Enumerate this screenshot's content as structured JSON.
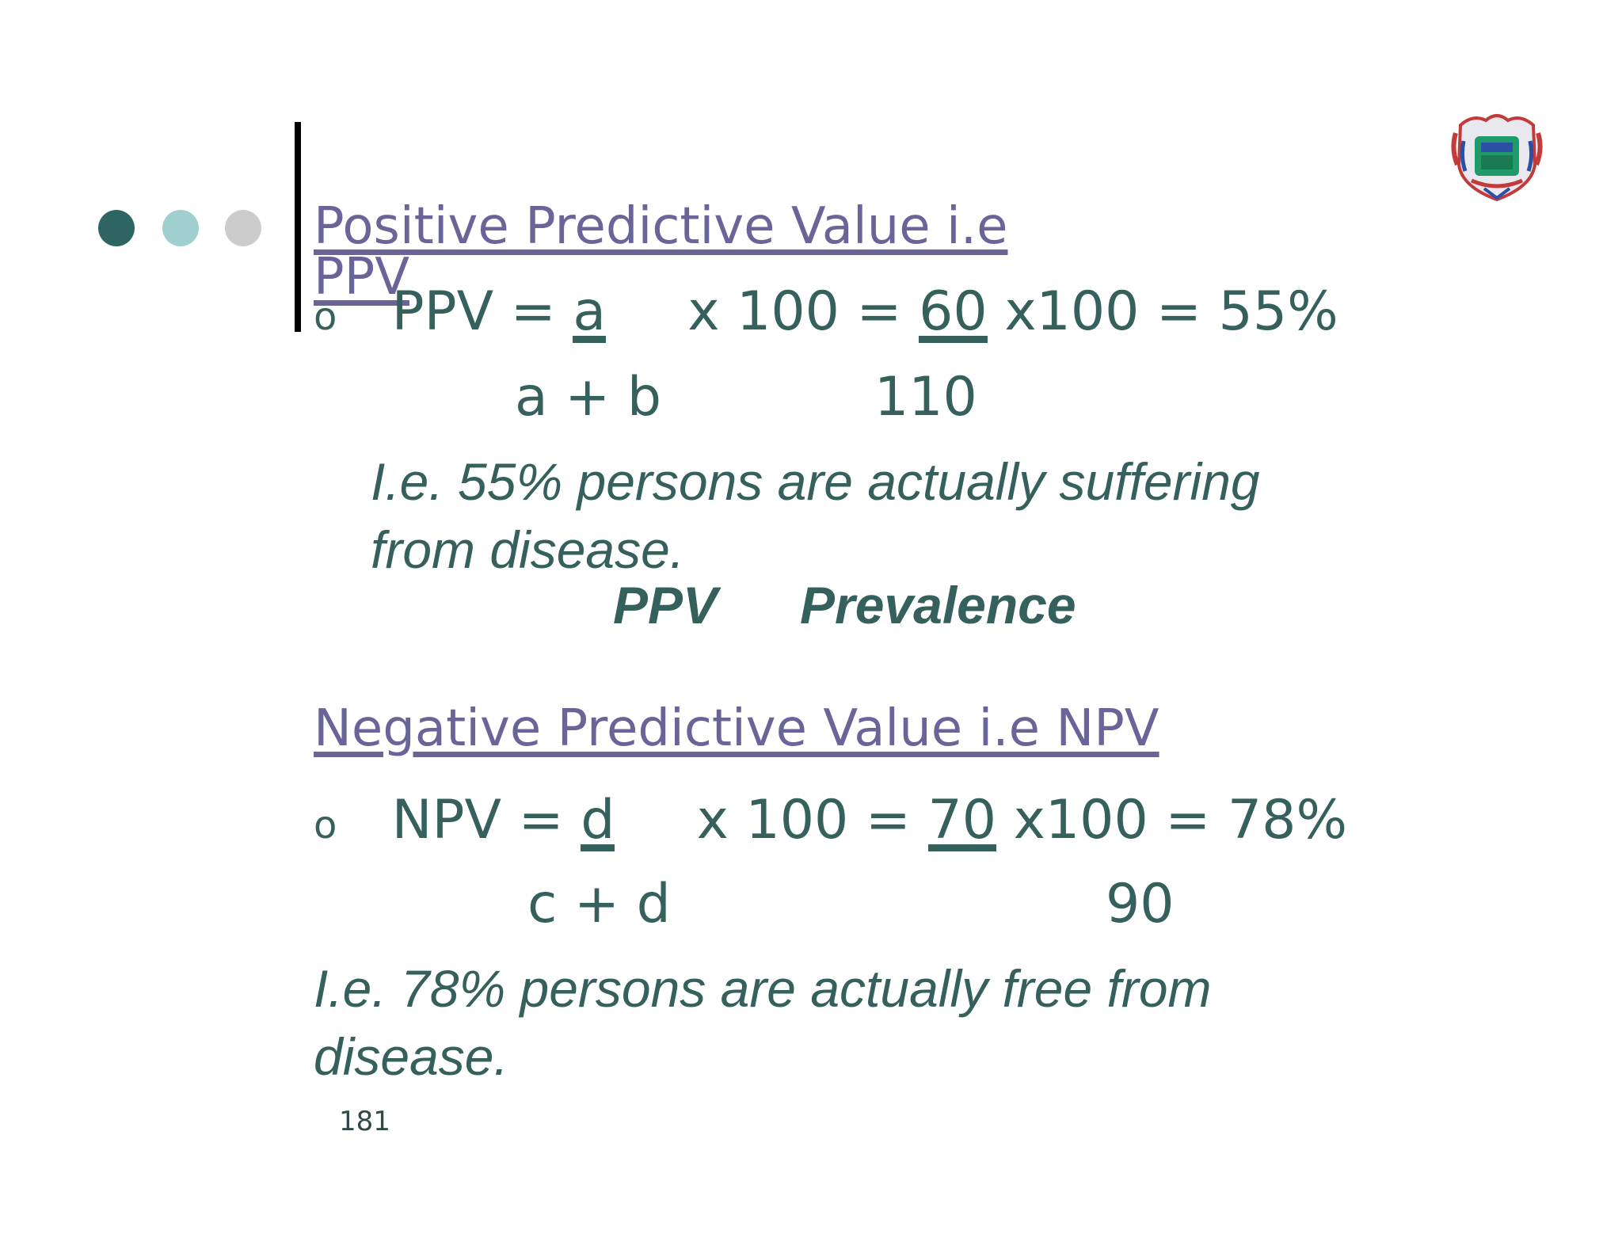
{
  "slide": {
    "ppv_heading": "Positive Predictive Value i.e PPV",
    "ppv_formula": {
      "bullet": "o",
      "lhs": "PPV = ",
      "numerator": "a",
      "mid": " x 100 = ",
      "value_num": "60",
      "rhs": " x100 = 55%",
      "denominator": "a + b",
      "value_den": "110"
    },
    "ppv_note_line1": "I.e. 55%      persons are actually suffering",
    "ppv_note_line2": "from disease.",
    "relation_left": "PPV",
    "relation_right": "Prevalence",
    "npv_heading": "Negative Predictive Value i.e NPV",
    "npv_formula": {
      "bullet": "o",
      "lhs": "NPV = ",
      "numerator": "d",
      "mid": " x 100 = ",
      "value_num": "70 ",
      "rhs": "x100 = 78%",
      "denominator": "c + d",
      "value_den": "90"
    },
    "npv_note_line1": "I.e. 78%  persons are actually free from",
    "npv_note_line2": "disease.",
    "page_number": "181"
  },
  "colors": {
    "text": "#35605c",
    "heading": "#6a6598",
    "dot1": "#2e6462",
    "dot2": "#9fcfcf",
    "dot3": "#cccccc"
  },
  "icons": {
    "logo": "coat-of-arms-emblem"
  }
}
